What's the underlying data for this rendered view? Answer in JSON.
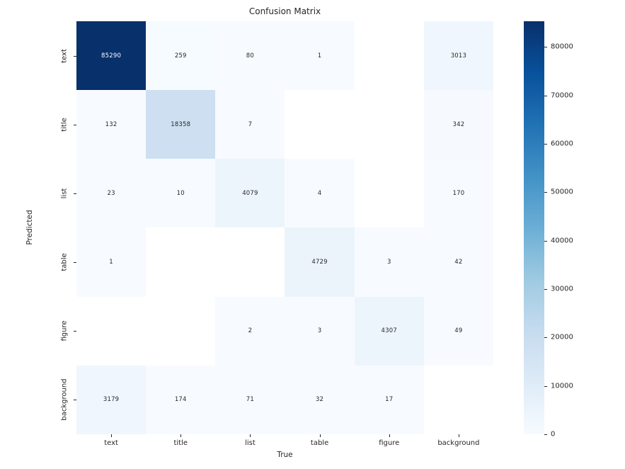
{
  "chart_data": {
    "type": "heatmap",
    "title": "Confusion Matrix",
    "xlabel": "True",
    "ylabel": "Predicted",
    "x_categories": [
      "text",
      "title",
      "list",
      "table",
      "figure",
      "background"
    ],
    "y_categories": [
      "text",
      "title",
      "list",
      "table",
      "figure",
      "background"
    ],
    "values": [
      [
        85290,
        259,
        80,
        1,
        null,
        3013
      ],
      [
        132,
        18358,
        7,
        null,
        null,
        342
      ],
      [
        23,
        10,
        4079,
        4,
        null,
        170
      ],
      [
        1,
        null,
        null,
        4729,
        3,
        42
      ],
      [
        null,
        null,
        2,
        3,
        4307,
        49
      ],
      [
        3179,
        174,
        71,
        32,
        17,
        null
      ]
    ],
    "vmin": 0,
    "vmax": 85290,
    "colormap": "Blues",
    "colormap_stops": [
      "#f7fbff",
      "#deebf7",
      "#c6dbef",
      "#9ecae1",
      "#6baed6",
      "#4292c6",
      "#2171b5",
      "#08519c",
      "#08306b"
    ],
    "empty_cell_color": "#ffffff",
    "annotation_dark_text": "#262626",
    "annotation_light_text": "#ffffff",
    "colorbar_ticks": [
      0,
      10000,
      20000,
      30000,
      40000,
      50000,
      60000,
      70000,
      80000
    ],
    "legend_position": "right-colorbar",
    "grid": false
  }
}
